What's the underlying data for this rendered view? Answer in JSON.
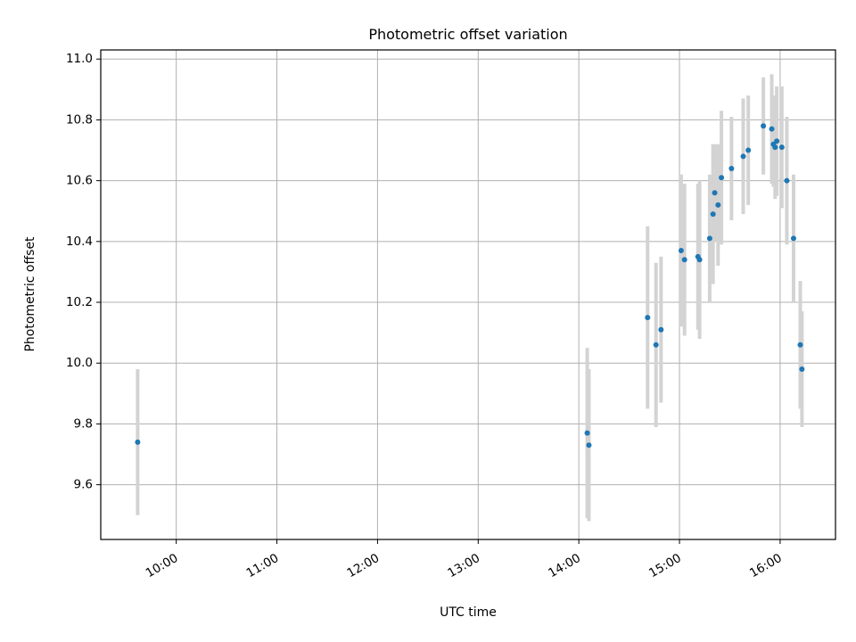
{
  "chart_data": {
    "type": "scatter",
    "title": "Photometric offset variation",
    "xlabel": "UTC time",
    "ylabel": "Photometric offset",
    "x_ticks": [
      "10:00",
      "11:00",
      "12:00",
      "13:00",
      "14:00",
      "15:00",
      "16:00"
    ],
    "y_ticks": [
      "9.6",
      "9.8",
      "10.0",
      "10.2",
      "10.4",
      "10.6",
      "10.8",
      "11.0"
    ],
    "xlim": [
      "09:15",
      "16:33"
    ],
    "ylim": [
      9.42,
      11.03
    ],
    "grid": true,
    "colors": {
      "point": "#1f77b4",
      "errorbar": "#d3d3d3",
      "grid": "#b0b0b0"
    },
    "series": [
      {
        "points": [
          {
            "x": "09:37",
            "y": 9.74,
            "err": 0.24
          },
          {
            "x": "14:05",
            "y": 9.77,
            "err": 0.28
          },
          {
            "x": "14:06",
            "y": 9.73,
            "err": 0.25
          },
          {
            "x": "14:41",
            "y": 10.15,
            "err": 0.3
          },
          {
            "x": "14:46",
            "y": 10.06,
            "err": 0.27
          },
          {
            "x": "14:49",
            "y": 10.11,
            "err": 0.24
          },
          {
            "x": "15:01",
            "y": 10.37,
            "err": 0.25
          },
          {
            "x": "15:03",
            "y": 10.34,
            "err": 0.25
          },
          {
            "x": "15:11",
            "y": 10.35,
            "err": 0.24
          },
          {
            "x": "15:12",
            "y": 10.34,
            "err": 0.26
          },
          {
            "x": "15:18",
            "y": 10.41,
            "err": 0.21
          },
          {
            "x": "15:20",
            "y": 10.49,
            "err": 0.23
          },
          {
            "x": "15:21",
            "y": 10.56,
            "err": 0.16
          },
          {
            "x": "15:23",
            "y": 10.52,
            "err": 0.2
          },
          {
            "x": "15:25",
            "y": 10.61,
            "err": 0.22
          },
          {
            "x": "15:31",
            "y": 10.64,
            "err": 0.17
          },
          {
            "x": "15:38",
            "y": 10.68,
            "err": 0.19
          },
          {
            "x": "15:41",
            "y": 10.7,
            "err": 0.18
          },
          {
            "x": "15:50",
            "y": 10.78,
            "err": 0.16
          },
          {
            "x": "15:55",
            "y": 10.77,
            "err": 0.18
          },
          {
            "x": "15:56",
            "y": 10.72,
            "err": 0.14
          },
          {
            "x": "15:57",
            "y": 10.71,
            "err": 0.17
          },
          {
            "x": "15:58",
            "y": 10.73,
            "err": 0.18
          },
          {
            "x": "16:01",
            "y": 10.71,
            "err": 0.2
          },
          {
            "x": "16:04",
            "y": 10.6,
            "err": 0.21
          },
          {
            "x": "16:08",
            "y": 10.41,
            "err": 0.21
          },
          {
            "x": "16:12",
            "y": 10.06,
            "err": 0.21
          },
          {
            "x": "16:13",
            "y": 9.98,
            "err": 0.19
          }
        ]
      }
    ]
  }
}
